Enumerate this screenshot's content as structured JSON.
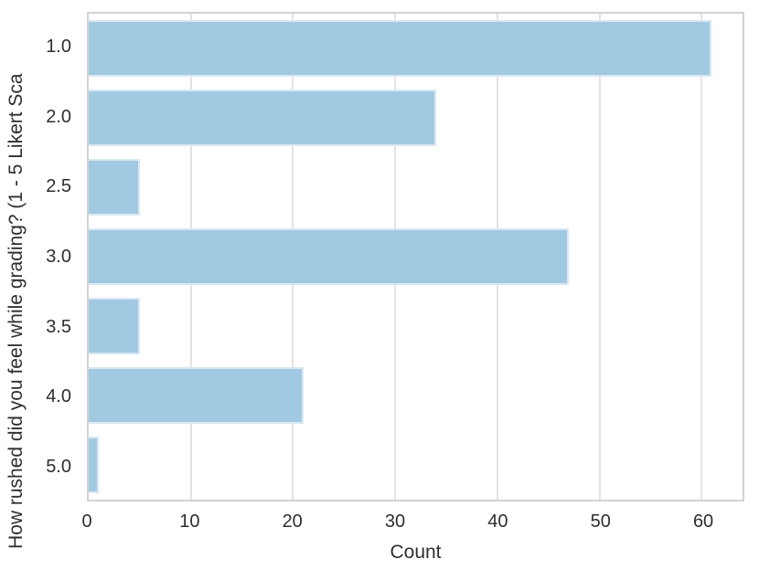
{
  "chart_data": {
    "type": "bar",
    "orientation": "horizontal",
    "title": "",
    "xlabel": "Count",
    "ylabel": "How rushed did you feel while grading? (1 - 5 Likert Sca",
    "categories": [
      "1.0",
      "2.0",
      "2.5",
      "3.0",
      "3.5",
      "4.0",
      "5.0"
    ],
    "values": [
      61,
      34,
      5,
      47,
      5,
      21,
      1
    ],
    "x_ticks": [
      0,
      10,
      20,
      30,
      40,
      50,
      60
    ],
    "xlim": [
      0,
      64
    ],
    "grid": "vertical-gridlines-on",
    "legend": "none",
    "colors": {
      "bar_fill": "#a2c9e2",
      "bar_edge": "#d8e8f3",
      "grid_line": "#e3e3e3",
      "spine": "#d2d2d2",
      "text": "#2e2e2e",
      "background": "#ffffff"
    }
  }
}
